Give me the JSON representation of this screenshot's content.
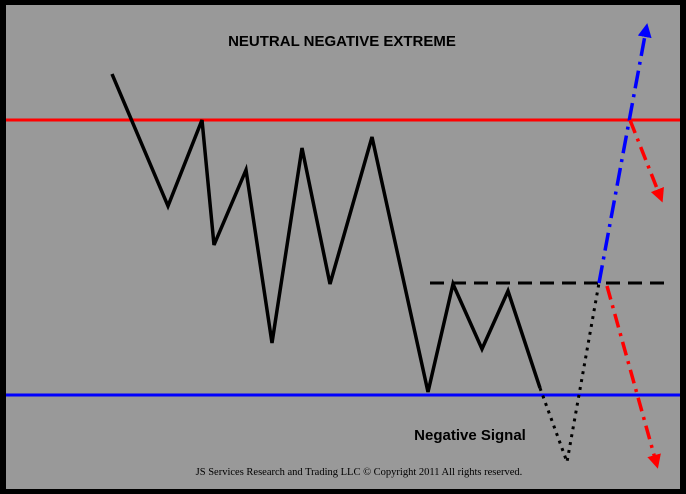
{
  "title": "NEUTRAL NEGATIVE EXTREME",
  "annotation": "Negative Signal",
  "footer": "JS Services Research and Trading LLC © Copyright 2011 All rights reserved.",
  "colors": {
    "background": "#999999",
    "frame": "#000000",
    "upper_line": "#ff0000",
    "lower_line": "#0000ff",
    "price_line": "#000000",
    "bull_arrow": "#0000ff",
    "bear_arrow": "#ff0000"
  }
}
